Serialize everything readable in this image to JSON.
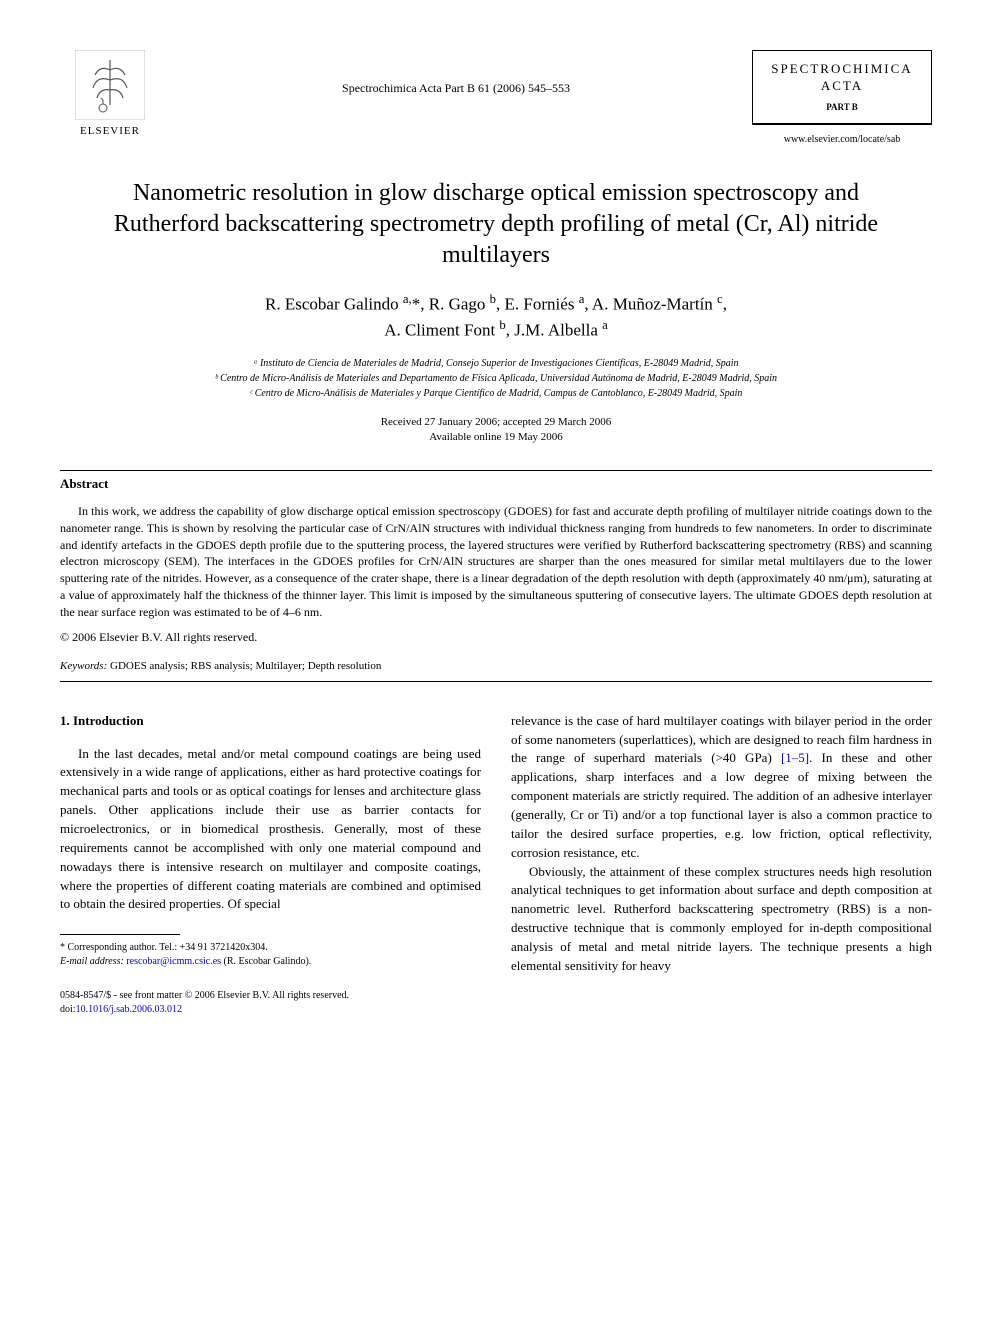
{
  "header": {
    "publisher": "ELSEVIER",
    "citation": "Spectrochimica Acta Part B 61 (2006) 545–553",
    "journal_name_line1": "SPECTROCHIMICA",
    "journal_name_line2": "ACTA",
    "journal_part": "PART B",
    "journal_url": "www.elsevier.com/locate/sab"
  },
  "title": "Nanometric resolution in glow discharge optical emission spectroscopy and Rutherford backscattering spectrometry depth profiling of metal (Cr, Al) nitride multilayers",
  "authors_html": "R. Escobar Galindo <sup>a,</sup>*, R. Gago <sup>b</sup>, E. Forniés <sup>a</sup>, A. Muñoz-Martín <sup>c</sup>,<br>A. Climent Font <sup>b</sup>, J.M. Albella <sup>a</sup>",
  "affiliations": [
    "ᵃ Instituto de Ciencia de Materiales de Madrid, Consejo Superior de Investigaciones Científicas, E-28049 Madrid, Spain",
    "ᵇ Centro de Micro-Análisis de Materiales and Departamento de Física Aplicada, Universidad Autónoma de Madrid, E-28049 Madrid, Spain",
    "ᶜ Centro de Micro-Análisis de Materiales y Parque Científico de Madrid, Campus de Cantoblanco, E-28049 Madrid, Spain"
  ],
  "dates": {
    "received_accepted": "Received 27 January 2006; accepted 29 March 2006",
    "online": "Available online 19 May 2006"
  },
  "abstract": {
    "heading": "Abstract",
    "body": "In this work, we address the capability of glow discharge optical emission spectroscopy (GDOES) for fast and accurate depth profiling of multilayer nitride coatings down to the nanometer range. This is shown by resolving the particular case of CrN/AlN structures with individual thickness ranging from hundreds to few nanometers. In order to discriminate and identify artefacts in the GDOES depth profile due to the sputtering process, the layered structures were verified by Rutherford backscattering spectrometry (RBS) and scanning electron microscopy (SEM). The interfaces in the GDOES profiles for CrN/AlN structures are sharper than the ones measured for similar metal multilayers due to the lower sputtering rate of the nitrides. However, as a consequence of the crater shape, there is a linear degradation of the depth resolution with depth (approximately 40 nm/μm), saturating at a value of approximately half the thickness of the thinner layer. This limit is imposed by the simultaneous sputtering of consecutive layers. The ultimate GDOES depth resolution at the near surface region was estimated to be of 4–6 nm.",
    "copyright": "© 2006 Elsevier B.V. All rights reserved."
  },
  "keywords": {
    "label": "Keywords:",
    "text": "GDOES analysis; RBS analysis; Multilayer; Depth resolution"
  },
  "section1": {
    "heading": "1. Introduction",
    "col1": "In the last decades, metal and/or metal compound coatings are being used extensively in a wide range of applications, either as hard protective coatings for mechanical parts and tools or as optical coatings for lenses and architecture glass panels. Other applications include their use as barrier contacts for microelectronics, or in biomedical prosthesis. Generally, most of these requirements cannot be accomplished with only one material compound and nowadays there is intensive research on multilayer and composite coatings, where the properties of different coating materials are combined and optimised to obtain the desired properties. Of special",
    "col2_para1_a": "relevance is the case of hard multilayer coatings with bilayer period in the order of some nanometers (superlattices), which are designed to reach film hardness in the range of superhard materials (>40 GPa) ",
    "col2_para1_ref": "[1–5]",
    "col2_para1_b": ". In these and other applications, sharp interfaces and a low degree of mixing between the component materials are strictly required. The addition of an adhesive interlayer (generally, Cr or Ti) and/or a top functional layer is also a common practice to tailor the desired surface properties, e.g. low friction, optical reflectivity, corrosion resistance, etc.",
    "col2_para2": "Obviously, the attainment of these complex structures needs high resolution analytical techniques to get information about surface and depth composition at nanometric level. Rutherford backscattering spectrometry (RBS) is a non-destructive technique that is commonly employed for in-depth compositional analysis of metal and metal nitride layers. The technique presents a high elemental sensitivity for heavy"
  },
  "footnote": {
    "corresponding": "* Corresponding author. Tel.: +34 91 3721420x304.",
    "email_label": "E-mail address:",
    "email": "rescobar@icmm.csic.es",
    "email_person": "(R. Escobar Galindo)."
  },
  "bottom": {
    "issn": "0584-8547/$ - see front matter © 2006 Elsevier B.V. All rights reserved.",
    "doi_label": "doi:",
    "doi": "10.1016/j.sab.2006.03.012"
  },
  "colors": {
    "link": "#0000cc",
    "text": "#000000",
    "background": "#ffffff"
  }
}
